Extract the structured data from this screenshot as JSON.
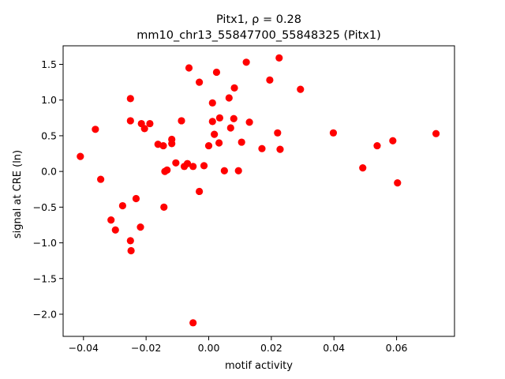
{
  "chart_data": {
    "type": "scatter",
    "title_line1": "Pitx1, ρ = 0.28",
    "title_line2": "mm10_chr13_55847700_55848325 (Pitx1)",
    "xlabel": "motif activity",
    "ylabel": "signal at CRE (ln)",
    "xlim": [
      -0.0465,
      0.0785
    ],
    "ylim": [
      -2.31,
      1.76
    ],
    "xticks": [
      -0.04,
      -0.02,
      0.0,
      0.02,
      0.04,
      0.06
    ],
    "xtick_labels": [
      "−0.04",
      "−0.02",
      "0.00",
      "0.02",
      "0.04",
      "0.06"
    ],
    "yticks": [
      -2.0,
      -1.5,
      -1.0,
      -0.5,
      0.0,
      0.5,
      1.0,
      1.5
    ],
    "ytick_labels": [
      "−2.0",
      "−1.5",
      "−1.0",
      "−0.5",
      "0.0",
      "0.5",
      "1.0",
      "1.5"
    ],
    "marker_color": "#ff0000",
    "grid": false,
    "points": [
      {
        "x": -0.041,
        "y": 0.21
      },
      {
        "x": -0.0362,
        "y": 0.59
      },
      {
        "x": -0.0345,
        "y": -0.11
      },
      {
        "x": -0.0312,
        "y": -0.68
      },
      {
        "x": -0.0298,
        "y": -0.82
      },
      {
        "x": -0.0275,
        "y": -0.48
      },
      {
        "x": -0.025,
        "y": 1.02
      },
      {
        "x": -0.025,
        "y": 0.71
      },
      {
        "x": -0.025,
        "y": -0.97
      },
      {
        "x": -0.0248,
        "y": -1.11
      },
      {
        "x": -0.0232,
        "y": -0.38
      },
      {
        "x": -0.0218,
        "y": -0.78
      },
      {
        "x": -0.0215,
        "y": 0.67
      },
      {
        "x": -0.0205,
        "y": 0.6
      },
      {
        "x": -0.0188,
        "y": 0.67
      },
      {
        "x": -0.0162,
        "y": 0.38
      },
      {
        "x": -0.0145,
        "y": 0.36
      },
      {
        "x": -0.0143,
        "y": -0.5
      },
      {
        "x": -0.014,
        "y": 0.0
      },
      {
        "x": -0.0133,
        "y": 0.02
      },
      {
        "x": -0.0118,
        "y": 0.45
      },
      {
        "x": -0.0118,
        "y": 0.39
      },
      {
        "x": -0.0105,
        "y": 0.12
      },
      {
        "x": -0.0087,
        "y": 0.71
      },
      {
        "x": -0.0078,
        "y": 0.07
      },
      {
        "x": -0.0068,
        "y": 0.11
      },
      {
        "x": -0.0063,
        "y": 1.45
      },
      {
        "x": -0.005,
        "y": 0.07
      },
      {
        "x": -0.005,
        "y": -2.12
      },
      {
        "x": -0.003,
        "y": 1.25
      },
      {
        "x": -0.003,
        "y": -0.28
      },
      {
        "x": -0.0015,
        "y": 0.08
      },
      {
        "x": 0.0,
        "y": 0.36
      },
      {
        "x": 0.0012,
        "y": 0.7
      },
      {
        "x": 0.0012,
        "y": 0.96
      },
      {
        "x": 0.0018,
        "y": 0.52
      },
      {
        "x": 0.0025,
        "y": 1.39
      },
      {
        "x": 0.0033,
        "y": 0.4
      },
      {
        "x": 0.0035,
        "y": 0.75
      },
      {
        "x": 0.005,
        "y": 0.01
      },
      {
        "x": 0.0065,
        "y": 1.03
      },
      {
        "x": 0.007,
        "y": 0.61
      },
      {
        "x": 0.008,
        "y": 0.74
      },
      {
        "x": 0.0082,
        "y": 1.17
      },
      {
        "x": 0.0095,
        "y": 0.01
      },
      {
        "x": 0.0105,
        "y": 0.41
      },
      {
        "x": 0.012,
        "y": 1.53
      },
      {
        "x": 0.013,
        "y": 0.69
      },
      {
        "x": 0.017,
        "y": 0.32
      },
      {
        "x": 0.0195,
        "y": 1.28
      },
      {
        "x": 0.022,
        "y": 0.54
      },
      {
        "x": 0.0225,
        "y": 1.59
      },
      {
        "x": 0.0228,
        "y": 0.31
      },
      {
        "x": 0.0293,
        "y": 1.15
      },
      {
        "x": 0.0398,
        "y": 0.54
      },
      {
        "x": 0.0492,
        "y": 0.05
      },
      {
        "x": 0.0538,
        "y": 0.36
      },
      {
        "x": 0.0588,
        "y": 0.43
      },
      {
        "x": 0.0603,
        "y": -0.16
      },
      {
        "x": 0.0726,
        "y": 0.53
      }
    ]
  }
}
